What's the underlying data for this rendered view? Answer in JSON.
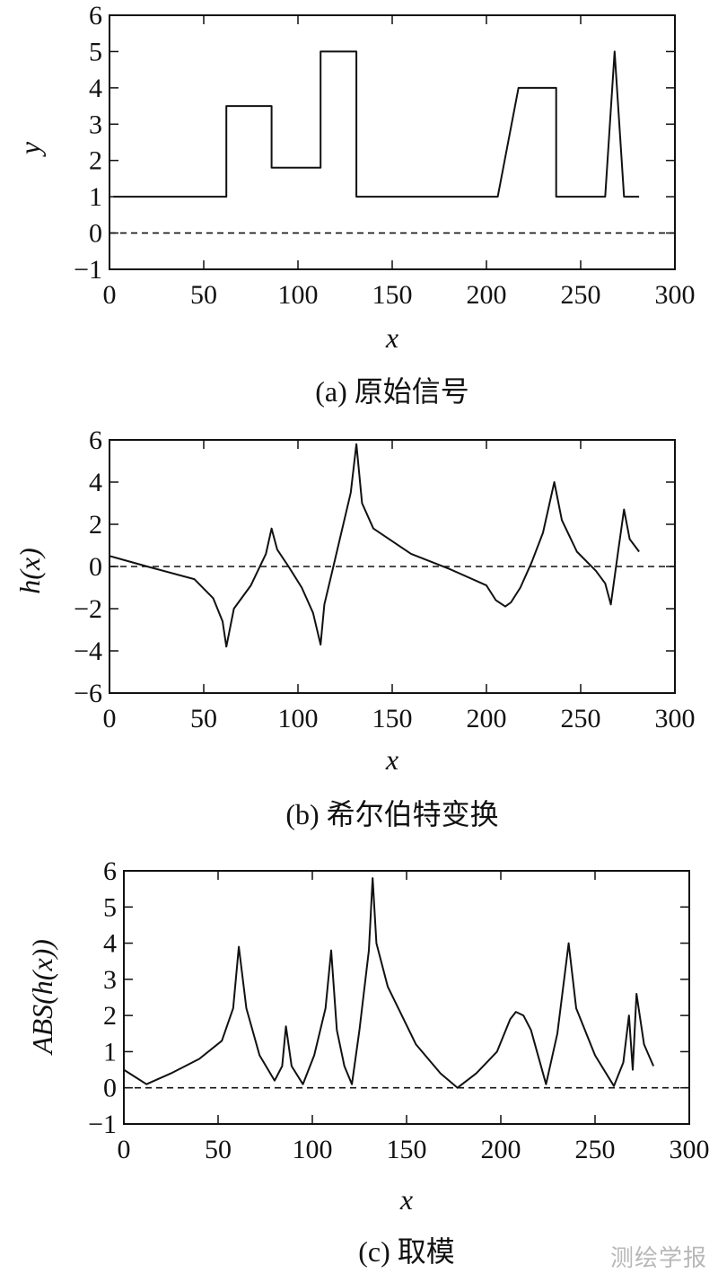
{
  "chart_data": [
    {
      "type": "line",
      "panel": "a",
      "caption": "(a) 原始信号",
      "xlabel": "x",
      "ylabel": "y",
      "xlim": [
        0,
        300
      ],
      "ylim": [
        -1,
        6
      ],
      "xticks": [
        "0",
        "50",
        "100",
        "150",
        "200",
        "250",
        "300"
      ],
      "yticks": [
        "−1",
        "0",
        "1",
        "2",
        "3",
        "4",
        "5",
        "6"
      ],
      "series": [
        {
          "name": "original signal",
          "style": "solid",
          "x": [
            2,
            62,
            62,
            86,
            86,
            112,
            112,
            131,
            131,
            206,
            217,
            237,
            237,
            263,
            268,
            273,
            281
          ],
          "y": [
            1,
            1,
            3.5,
            3.5,
            1.8,
            1.8,
            5,
            5,
            1,
            1,
            4,
            4,
            1,
            1,
            5,
            1,
            1
          ]
        },
        {
          "name": "zero line",
          "style": "dashed",
          "x": [
            0,
            300
          ],
          "y": [
            0,
            0
          ]
        }
      ]
    },
    {
      "type": "line",
      "panel": "b",
      "caption": "(b) 希尔伯特变换",
      "xlabel": "x",
      "ylabel": "h(x)",
      "xlim": [
        0,
        300
      ],
      "ylim": [
        -6,
        6
      ],
      "xticks": [
        "0",
        "50",
        "100",
        "150",
        "200",
        "250",
        "300"
      ],
      "yticks": [
        "−6",
        "−4",
        "−2",
        "0",
        "2",
        "4",
        "6"
      ],
      "series": [
        {
          "name": "Hilbert transform",
          "style": "solid",
          "x": [
            0,
            20,
            45,
            55,
            60,
            62,
            66,
            75,
            83,
            86,
            89,
            95,
            102,
            108,
            112,
            114,
            118,
            123,
            128,
            131,
            134,
            140,
            160,
            180,
            200,
            205,
            210,
            213,
            218,
            224,
            230,
            236,
            240,
            248,
            258,
            263,
            266,
            270,
            273,
            276,
            281
          ],
          "y": [
            0.5,
            0,
            -0.6,
            -1.5,
            -2.6,
            -3.8,
            -2.0,
            -0.9,
            0.6,
            1.8,
            0.8,
            0,
            -1.0,
            -2.2,
            -3.7,
            -1.8,
            -0.3,
            1.6,
            3.5,
            5.8,
            3.0,
            1.8,
            0.6,
            -0.1,
            -0.9,
            -1.6,
            -1.9,
            -1.7,
            -1.0,
            0.2,
            1.6,
            4.0,
            2.2,
            0.7,
            -0.2,
            -0.8,
            -1.8,
            0.8,
            2.7,
            1.3,
            0.7
          ]
        },
        {
          "name": "zero line",
          "style": "dashed",
          "x": [
            0,
            300
          ],
          "y": [
            0,
            0
          ]
        }
      ]
    },
    {
      "type": "line",
      "panel": "c",
      "caption": "(c) 取模",
      "xlabel": "x",
      "ylabel": "ABS(h(x))",
      "xlim": [
        0,
        300
      ],
      "ylim": [
        -1,
        6
      ],
      "xticks": [
        "0",
        "50",
        "100",
        "150",
        "200",
        "250",
        "300"
      ],
      "yticks": [
        "−1",
        "0",
        "1",
        "2",
        "3",
        "4",
        "5",
        "6"
      ],
      "series": [
        {
          "name": "abs of Hilbert transform",
          "style": "solid",
          "x": [
            0,
            6,
            12,
            25,
            40,
            52,
            58,
            61,
            65,
            72,
            80,
            84,
            86,
            89,
            95,
            101,
            107,
            110,
            113,
            117,
            121,
            125,
            130,
            132,
            134,
            140,
            155,
            168,
            177,
            187,
            198,
            205,
            208,
            212,
            216,
            224,
            230,
            236,
            240,
            250,
            260,
            265,
            268,
            270,
            272,
            276,
            281
          ],
          "y": [
            0.5,
            0.3,
            0.1,
            0.4,
            0.8,
            1.3,
            2.2,
            3.9,
            2.2,
            0.9,
            0.2,
            0.6,
            1.7,
            0.6,
            0.1,
            0.9,
            2.2,
            3.8,
            1.6,
            0.6,
            0.1,
            1.6,
            3.8,
            5.8,
            4.0,
            2.8,
            1.2,
            0.4,
            0.0,
            0.4,
            1.0,
            1.9,
            2.1,
            2.0,
            1.6,
            0.1,
            1.5,
            4.0,
            2.2,
            0.9,
            0.05,
            0.7,
            2.0,
            0.5,
            2.6,
            1.2,
            0.6
          ]
        },
        {
          "name": "zero line",
          "style": "dashed",
          "x": [
            0,
            300
          ],
          "y": [
            0,
            0
          ]
        }
      ]
    }
  ],
  "watermark": "测绘学报"
}
